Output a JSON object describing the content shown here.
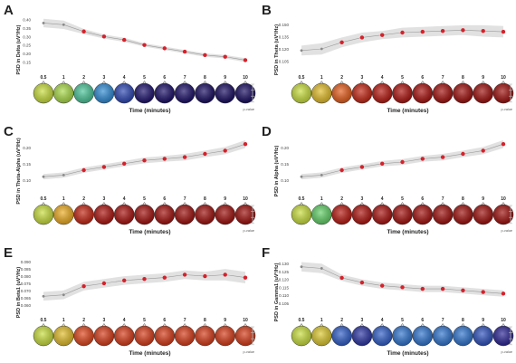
{
  "colors": {
    "band": "#dcdcdc",
    "marker_high": "#d6212b",
    "marker_low": "#8a8a8a",
    "text": "#222222",
    "scale": [
      "#0b0046",
      "#2b1f8f",
      "#2f5ec9",
      "#2fb5e0",
      "#5ccf6a",
      "#cfe03a",
      "#f2a31c",
      "#e0451a",
      "#b3140f",
      "#7a0608"
    ]
  },
  "chart_data": [
    {
      "panel": "A",
      "type": "scatter",
      "ylabel": "PSD in Delta (uV²/Hz)",
      "xlabel": "Time (minutes)",
      "x_ticks": [
        "0.5",
        "1",
        "2",
        "3",
        "4",
        "5",
        "6",
        "7",
        "8",
        "9",
        "10"
      ],
      "y_ticks": [
        "0.40",
        "0.35",
        "0.30",
        "0.25",
        "0.20",
        "0.15"
      ],
      "ylim": [
        0.13,
        0.42
      ],
      "values": [
        0.38,
        0.37,
        0.33,
        0.3,
        0.28,
        0.25,
        0.23,
        0.21,
        0.19,
        0.18,
        0.16
      ],
      "band": [
        0.025,
        0.025,
        0.015,
        0.012,
        0.012,
        0.01,
        0.01,
        0.01,
        0.01,
        0.01,
        0.012
      ],
      "colorbar_label": "p-value",
      "topomap_levels": [
        0.55,
        0.52,
        0.4,
        0.28,
        0.18,
        0.06,
        0.05,
        0.05,
        0.04,
        0.04,
        0.04
      ]
    },
    {
      "panel": "B",
      "type": "scatter",
      "ylabel": "PSD in Theta (uV²/Hz)",
      "xlabel": "Time (minutes)",
      "x_ticks": [
        "0.5",
        "1",
        "2",
        "3",
        "4",
        "5",
        "6",
        "7",
        "8",
        "9",
        "10"
      ],
      "y_ticks": [
        "0.150",
        "0.135",
        "0.120",
        "0.105"
      ],
      "ylim": [
        0.1,
        0.16
      ],
      "values": [
        0.118,
        0.12,
        0.128,
        0.134,
        0.137,
        0.14,
        0.141,
        0.142,
        0.143,
        0.142,
        0.141
      ],
      "band": [
        0.006,
        0.007,
        0.006,
        0.006,
        0.005,
        0.006,
        0.006,
        0.006,
        0.006,
        0.007,
        0.007
      ],
      "colorbar_label": "p-value",
      "topomap_levels": [
        0.55,
        0.62,
        0.75,
        0.85,
        0.88,
        0.9,
        0.91,
        0.92,
        0.93,
        0.93,
        0.93
      ]
    },
    {
      "panel": "C",
      "type": "scatter",
      "ylabel": "PSD in Theta-Alpha (uV²/Hz)",
      "xlabel": "Time (minutes)",
      "x_ticks": [
        "0.5",
        "1",
        "2",
        "3",
        "4",
        "5",
        "6",
        "7",
        "8",
        "9",
        "10"
      ],
      "y_ticks": [
        "0.20",
        "0.15",
        "0.10"
      ],
      "ylim": [
        0.08,
        0.23
      ],
      "values": [
        0.11,
        0.115,
        0.13,
        0.14,
        0.15,
        0.16,
        0.165,
        0.17,
        0.18,
        0.19,
        0.21
      ],
      "band": [
        0.008,
        0.008,
        0.008,
        0.008,
        0.008,
        0.009,
        0.009,
        0.01,
        0.01,
        0.011,
        0.012
      ],
      "colorbar_label": "p-value",
      "topomap_levels": [
        0.55,
        0.65,
        0.85,
        0.9,
        0.91,
        0.92,
        0.92,
        0.93,
        0.93,
        0.93,
        0.93
      ]
    },
    {
      "panel": "D",
      "type": "scatter",
      "ylabel": "PSD in Alpha (uV²/Hz)",
      "xlabel": "Time (minutes)",
      "x_ticks": [
        "0.5",
        "1",
        "2",
        "3",
        "4",
        "5",
        "6",
        "7",
        "8",
        "9",
        "10"
      ],
      "y_ticks": [
        "0.20",
        "0.15",
        "0.10"
      ],
      "ylim": [
        0.08,
        0.23
      ],
      "values": [
        0.11,
        0.115,
        0.13,
        0.14,
        0.15,
        0.155,
        0.165,
        0.17,
        0.18,
        0.19,
        0.21
      ],
      "band": [
        0.008,
        0.008,
        0.008,
        0.008,
        0.008,
        0.009,
        0.009,
        0.01,
        0.01,
        0.011,
        0.012
      ],
      "colorbar_label": "p-value",
      "topomap_levels": [
        0.55,
        0.45,
        0.88,
        0.9,
        0.91,
        0.92,
        0.92,
        0.93,
        0.93,
        0.93,
        0.93
      ]
    },
    {
      "panel": "E",
      "type": "scatter",
      "ylabel": "PSD in Beta1 (uV²/Hz)",
      "xlabel": "Time (minutes)",
      "x_ticks": [
        "0.5",
        "1",
        "2",
        "3",
        "4",
        "5",
        "6",
        "7",
        "8",
        "9",
        "10"
      ],
      "y_ticks": [
        "0.090",
        "0.085",
        "0.080",
        "0.075",
        "0.070",
        "0.065",
        "0.060"
      ],
      "ylim": [
        0.058,
        0.092
      ],
      "values": [
        0.066,
        0.067,
        0.073,
        0.075,
        0.077,
        0.078,
        0.079,
        0.081,
        0.08,
        0.081,
        0.079
      ],
      "band": [
        0.003,
        0.003,
        0.003,
        0.003,
        0.003,
        0.003,
        0.003,
        0.003,
        0.003,
        0.004,
        0.004
      ],
      "colorbar_label": "p-value",
      "topomap_levels": [
        0.55,
        0.62,
        0.78,
        0.8,
        0.8,
        0.8,
        0.8,
        0.8,
        0.8,
        0.8,
        0.8
      ]
    },
    {
      "panel": "F",
      "type": "scatter",
      "ylabel": "PSD in Gamma1 (uV²/Hz)",
      "xlabel": "Time (minutes)",
      "x_ticks": [
        "0.5",
        "1",
        "2",
        "3",
        "4",
        "5",
        "6",
        "7",
        "8",
        "9",
        "10"
      ],
      "y_ticks": [
        "0.130",
        "0.125",
        "0.120",
        "0.115",
        "0.110",
        "0.105"
      ],
      "ylim": [
        0.102,
        0.133
      ],
      "values": [
        0.128,
        0.127,
        0.121,
        0.118,
        0.116,
        0.115,
        0.114,
        0.114,
        0.113,
        0.112,
        0.111
      ],
      "band": [
        0.003,
        0.003,
        0.002,
        0.002,
        0.002,
        0.002,
        0.002,
        0.002,
        0.002,
        0.002,
        0.002
      ],
      "colorbar_label": "p-value",
      "topomap_levels": [
        0.55,
        0.6,
        0.22,
        0.15,
        0.22,
        0.25,
        0.25,
        0.25,
        0.25,
        0.2,
        0.12
      ]
    }
  ]
}
